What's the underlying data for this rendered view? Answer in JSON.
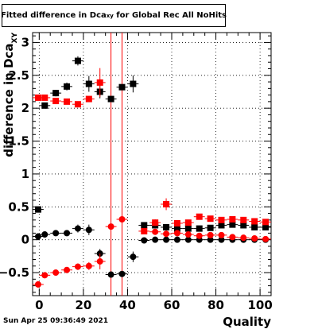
{
  "title": {
    "prefix": "Fitted difference in Dca",
    "subscript": "xy",
    "suffix": " for Global Rec All NoHits"
  },
  "footer": {
    "timestamp": "Sun Apr 25 09:36:49 2021"
  },
  "colors": {
    "series_black": "#000000",
    "series_red": "#ff0000",
    "grid": "#000000",
    "vertical_lines": "#ff0000"
  },
  "chart_data": {
    "type": "scatter",
    "xlabel": "Quality",
    "ylabel_main": "difference in Dca",
    "ylabel_sub": "XY",
    "xlim": [
      -3,
      105
    ],
    "ylim": [
      -0.85,
      3.15
    ],
    "xticks": [
      0,
      20,
      40,
      60,
      80,
      100
    ],
    "yticks": [
      -0.5,
      0,
      0.5,
      1,
      1.5,
      2,
      2.5,
      3
    ],
    "ytick_labels": [
      "−0.5",
      "0",
      "0.5",
      "1",
      "1.5",
      "2",
      "2.5",
      "3"
    ],
    "grid": true,
    "vertical_lines": [
      32.5,
      37.5
    ],
    "series": [
      {
        "marker": "square",
        "color": "black",
        "x": [
          -0.5,
          2.5,
          7.5,
          12.5,
          17.5,
          22.5,
          27.5,
          32.5,
          37.5,
          42.5,
          47.5,
          52.5,
          57.5,
          62.5,
          67.5,
          72.5,
          77.5,
          82.5,
          87.5,
          92.5,
          97.5,
          102.5
        ],
        "y": [
          0.46,
          2.04,
          2.23,
          2.33,
          2.72,
          2.37,
          2.25,
          2.14,
          2.32,
          2.37,
          0.22,
          0.22,
          0.19,
          0.17,
          0.17,
          0.17,
          0.18,
          0.22,
          0.23,
          0.22,
          0.19,
          0.19
        ],
        "ey": [
          0.03,
          0.04,
          0.05,
          0.06,
          0.07,
          0.12,
          0.1,
          0.04,
          0.04,
          0.13,
          0.03,
          0.03,
          0.03,
          0.03,
          0.03,
          0.03,
          0.03,
          0.03,
          0.03,
          0.03,
          0.03,
          0.03
        ]
      },
      {
        "marker": "square",
        "color": "red",
        "x": [
          -0.5,
          2.5,
          7.5,
          12.5,
          17.5,
          22.5,
          27.5,
          47.5,
          52.5,
          57.5,
          62.5,
          67.5,
          72.5,
          77.5,
          82.5,
          87.5,
          92.5,
          97.5,
          102.5
        ],
        "y": [
          2.16,
          2.16,
          2.11,
          2.1,
          2.06,
          2.14,
          2.39,
          0.13,
          0.26,
          0.54,
          0.25,
          0.26,
          0.35,
          0.32,
          0.3,
          0.31,
          0.3,
          0.28,
          0.27
        ],
        "ey": [
          0.04,
          0.03,
          0.03,
          0.03,
          0.03,
          0.03,
          0.22,
          0.03,
          0.05,
          0.09,
          0.04,
          0.03,
          0.03,
          0.03,
          0.03,
          0.03,
          0.03,
          0.03,
          0.03
        ]
      },
      {
        "marker": "circle",
        "color": "black",
        "x": [
          -0.5,
          2.5,
          7.5,
          12.5,
          17.5,
          22.5,
          27.5,
          32.5,
          37.5,
          42.5,
          47.5,
          52.5,
          57.5,
          62.5,
          67.5,
          72.5,
          77.5,
          82.5,
          87.5,
          92.5,
          97.5,
          102.5
        ],
        "y": [
          0.05,
          0.08,
          0.1,
          0.1,
          0.17,
          0.15,
          -0.21,
          -0.53,
          -0.52,
          -0.26,
          -0.01,
          0.0,
          0.0,
          0.0,
          0.0,
          0.0,
          0.0,
          0.0,
          0.0,
          0.0,
          0.0,
          0.0
        ],
        "ey": [
          0.03,
          0.03,
          0.04,
          0.04,
          0.06,
          0.08,
          0.07,
          0.03,
          0.03,
          0.08,
          0.02,
          0.02,
          0.02,
          0.02,
          0.02,
          0.02,
          0.02,
          0.02,
          0.02,
          0.02,
          0.02,
          0.02
        ]
      },
      {
        "marker": "circle",
        "color": "red",
        "x": [
          -0.5,
          2.5,
          7.5,
          12.5,
          17.5,
          22.5,
          27.5,
          32.5,
          37.5,
          52.5,
          57.5,
          62.5,
          67.5,
          72.5,
          77.5,
          82.5,
          87.5,
          92.5,
          97.5,
          102.5
        ],
        "y": [
          -0.68,
          -0.54,
          -0.5,
          -0.46,
          -0.41,
          -0.4,
          -0.33,
          0.2,
          0.31,
          0.12,
          0.09,
          0.1,
          0.08,
          0.06,
          0.07,
          0.07,
          0.04,
          0.03,
          0.02,
          0.01
        ],
        "ey": [
          0.05,
          0.03,
          0.03,
          0.03,
          0.05,
          0.06,
          0.12,
          0.03,
          0.03,
          0.04,
          0.05,
          0.04,
          0.03,
          0.03,
          0.03,
          0.03,
          0.03,
          0.03,
          0.03,
          0.03
        ]
      }
    ]
  }
}
